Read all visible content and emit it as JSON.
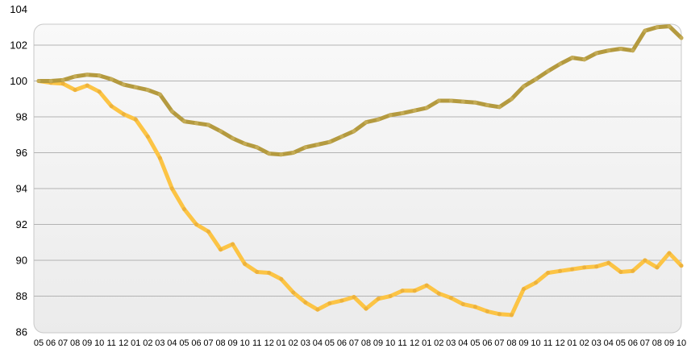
{
  "chart_data": {
    "type": "line",
    "title": "",
    "legend": "none",
    "grid": true,
    "ylim": [
      86,
      104
    ],
    "y_ticks": [
      104,
      102,
      100,
      98,
      96,
      94,
      92,
      90,
      88,
      86
    ],
    "categories": [
      "05",
      "06",
      "07",
      "08",
      "09",
      "10",
      "11",
      "12",
      "01",
      "02",
      "03",
      "04",
      "05",
      "06",
      "07",
      "08",
      "09",
      "10",
      "11",
      "12",
      "01",
      "02",
      "03",
      "04",
      "05",
      "06",
      "07",
      "08",
      "09",
      "10",
      "11",
      "12",
      "01",
      "02",
      "03",
      "04",
      "05",
      "06",
      "07",
      "08",
      "09",
      "10",
      "11",
      "12",
      "01",
      "02",
      "03",
      "04",
      "05",
      "06",
      "07",
      "08",
      "09",
      "10"
    ],
    "series": [
      {
        "id": "series-1",
        "color": "#b49a3f",
        "marker_color": "#c4ab55",
        "values": [
          100.0,
          100.0,
          100.05,
          100.25,
          100.35,
          100.3,
          100.1,
          99.8,
          99.65,
          99.5,
          99.25,
          98.3,
          97.75,
          97.65,
          97.55,
          97.2,
          96.8,
          96.5,
          96.3,
          95.95,
          95.9,
          96.0,
          96.3,
          96.45,
          96.6,
          96.9,
          97.2,
          97.7,
          97.85,
          98.1,
          98.2,
          98.35,
          98.5,
          98.9,
          98.9,
          98.85,
          98.8,
          98.65,
          98.55,
          99.0,
          99.7,
          100.1,
          100.55,
          100.95,
          101.3,
          101.2,
          101.55,
          101.7,
          101.8,
          101.7,
          102.8,
          103.0,
          103.05,
          102.4
        ]
      },
      {
        "id": "series-2",
        "color": "#fcc445",
        "marker_color": "#edb23c",
        "values": [
          100.0,
          99.9,
          99.85,
          99.5,
          99.75,
          99.4,
          98.6,
          98.15,
          97.85,
          96.9,
          95.7,
          94.0,
          92.85,
          92.0,
          91.6,
          90.6,
          90.9,
          89.8,
          89.35,
          89.3,
          88.95,
          88.2,
          87.65,
          87.25,
          87.6,
          87.75,
          87.95,
          87.3,
          87.85,
          88.0,
          88.3,
          88.3,
          88.6,
          88.15,
          87.9,
          87.55,
          87.4,
          87.15,
          87.0,
          86.95,
          88.4,
          88.75,
          89.3,
          89.4,
          89.5,
          89.6,
          89.65,
          89.85,
          89.35,
          89.4,
          90.0,
          89.6,
          90.4,
          89.7
        ]
      }
    ],
    "colors": {
      "gridline": "#b3b3b3",
      "plot_border": "#c9c9c9",
      "plot_bg_top": "#f9f9f9",
      "plot_bg_bottom": "#ebebeb",
      "axis_text": "#000000"
    }
  }
}
